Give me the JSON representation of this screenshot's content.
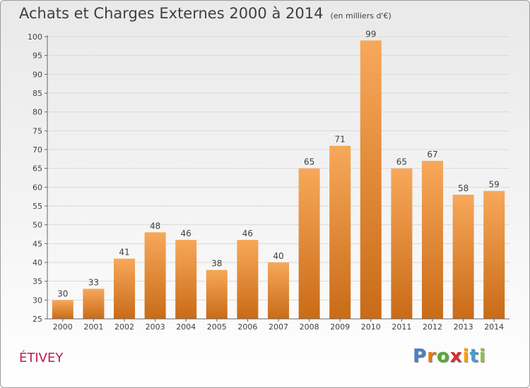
{
  "header": {
    "title": "Achats et Charges Externes 2000 à 2014",
    "subtitle": "(en milliers d'€)"
  },
  "commune": "ÉTIVEY",
  "logo": {
    "letters": [
      "P",
      "r",
      "o",
      "x",
      "i",
      "t",
      "i"
    ],
    "colors": [
      "#4a7fc1",
      "#e07b1e",
      "#5aa832",
      "#d22f2f",
      "#f0a21a",
      "#4a9ad4",
      "#8bc34a"
    ]
  },
  "colors": {
    "bar_top": "#f7a85a",
    "bar_bottom": "#c96b17",
    "grid": "#d9d9d9",
    "axis": "#666666",
    "text": "#3f3f3f",
    "commune": "#c2185b"
  },
  "chart_data": {
    "type": "bar",
    "title": "Achats et Charges Externes 2000 à 2014",
    "subtitle": "(en milliers d'€)",
    "categories": [
      "2000",
      "2001",
      "2002",
      "2003",
      "2004",
      "2005",
      "2006",
      "2007",
      "2008",
      "2009",
      "2010",
      "2011",
      "2012",
      "2013",
      "2014"
    ],
    "values": [
      30,
      33,
      41,
      48,
      46,
      38,
      46,
      40,
      65,
      71,
      99,
      65,
      67,
      58,
      59
    ],
    "ylim": [
      25,
      100
    ],
    "yticks": [
      25,
      30,
      35,
      40,
      45,
      50,
      55,
      60,
      65,
      70,
      75,
      80,
      85,
      90,
      95,
      100
    ],
    "grid": true,
    "data_labels": true
  }
}
